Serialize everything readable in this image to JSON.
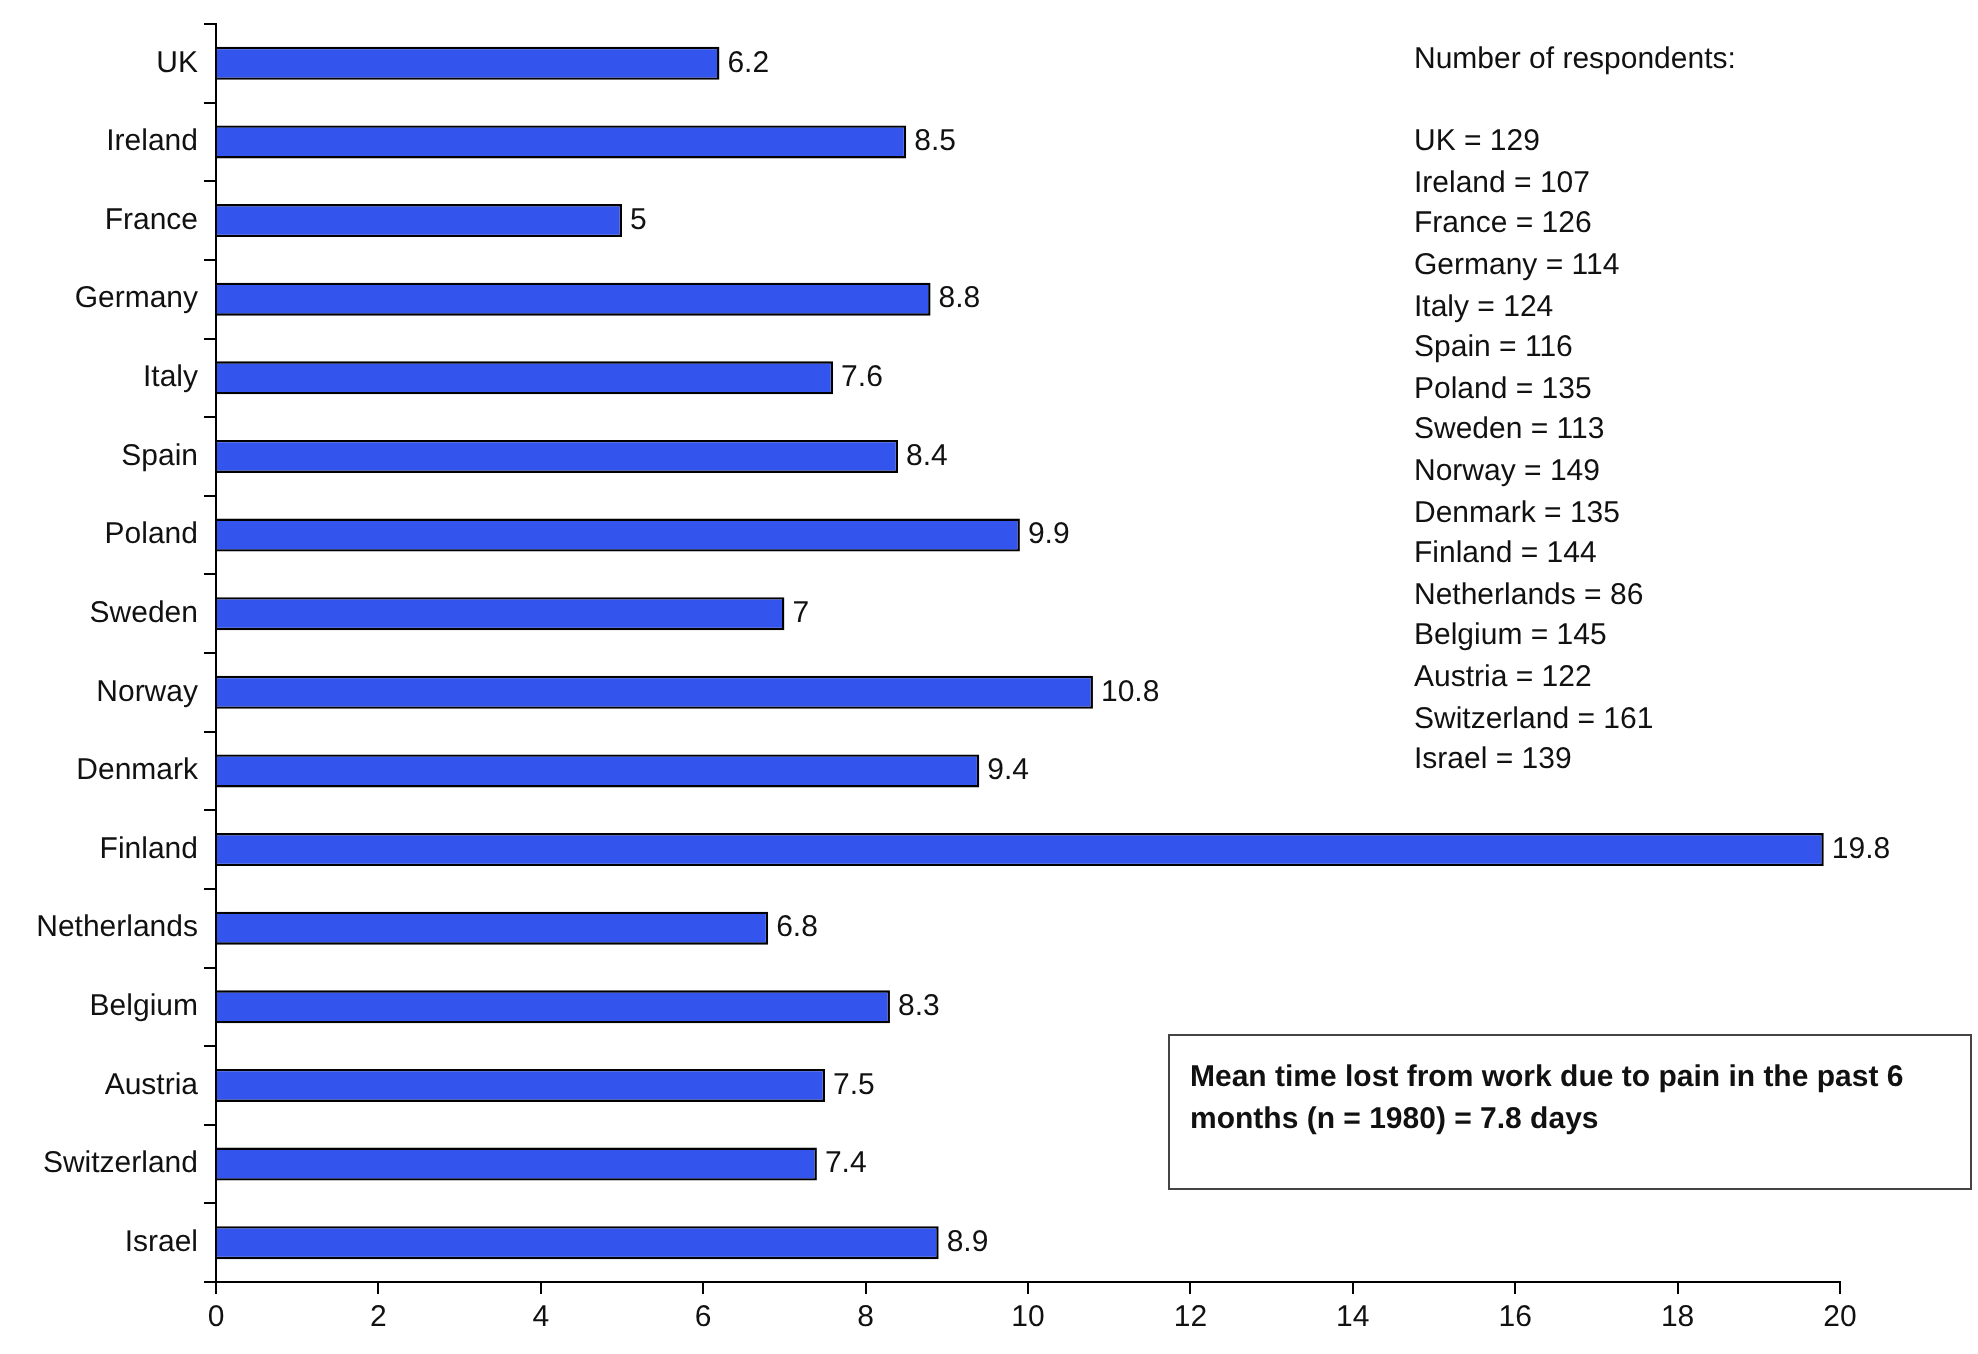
{
  "chart_data": {
    "type": "bar",
    "orientation": "horizontal",
    "categories": [
      "UK",
      "Ireland",
      "France",
      "Germany",
      "Italy",
      "Spain",
      "Poland",
      "Sweden",
      "Norway",
      "Denmark",
      "Finland",
      "Netherlands",
      "Belgium",
      "Austria",
      "Switzerland",
      "Israel"
    ],
    "values": [
      6.2,
      8.5,
      5,
      8.8,
      7.6,
      8.4,
      9.9,
      7,
      10.8,
      9.4,
      19.8,
      6.8,
      8.3,
      7.5,
      7.4,
      8.9
    ],
    "color": "#3355ee",
    "xlim": [
      0,
      20
    ],
    "xticks": [
      0,
      2,
      4,
      6,
      8,
      10,
      12,
      14,
      16,
      18,
      20
    ],
    "grid": false,
    "legend": false,
    "data_labels": true,
    "annotations": [
      "Number of respondents:",
      "UK = 129",
      "Ireland = 107",
      "France = 126",
      "Germany = 114",
      "Italy = 124",
      "Spain = 116",
      "Poland = 135",
      "Sweden = 113",
      "Norway = 149",
      "Denmark = 135",
      "Finland = 144",
      "Netherlands = 86",
      "Belgium = 145",
      "Austria = 122",
      "Switzerland = 161",
      "Israel = 139",
      "Mean time lost from work due to pain in the past 6 months (n = 1980) = 7.8 days"
    ]
  }
}
